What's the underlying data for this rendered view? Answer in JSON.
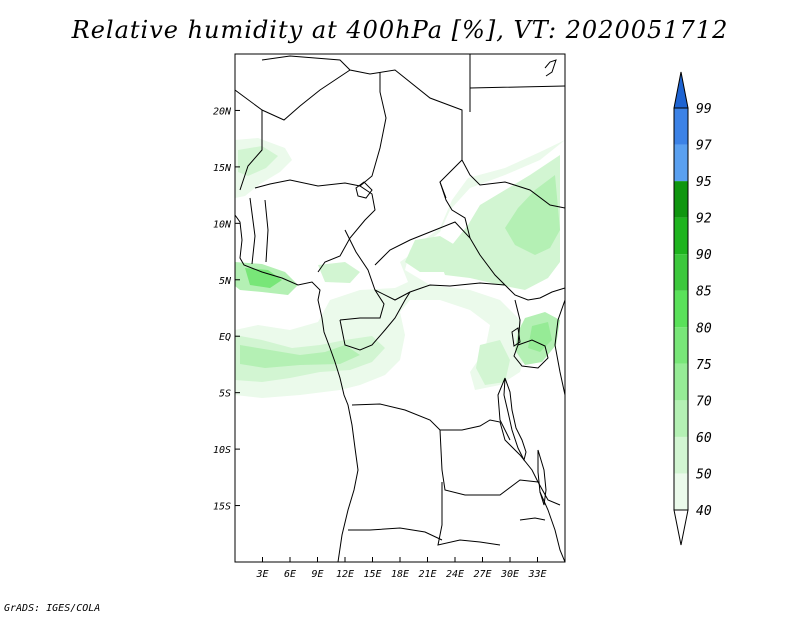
{
  "title": "Relative humidity at 400hPa [%], VT: 2020051712",
  "credit": "GrADS: IGES/COLA",
  "map": {
    "lon_range": [
      0,
      36
    ],
    "lat_range": [
      -20,
      25
    ],
    "x_ticks": [
      "3E",
      "6E",
      "9E",
      "12E",
      "15E",
      "18E",
      "21E",
      "24E",
      "27E",
      "30E",
      "33E"
    ],
    "x_tick_values": [
      3,
      6,
      9,
      12,
      15,
      18,
      21,
      24,
      27,
      30,
      33
    ],
    "y_ticks": [
      "20N",
      "15N",
      "10N",
      "5N",
      "EQ",
      "5S",
      "10S",
      "15S"
    ],
    "y_tick_values": [
      20,
      15,
      10,
      5,
      0,
      -5,
      -10,
      -15
    ]
  },
  "colorbar": {
    "levels": [
      "40",
      "50",
      "60",
      "70",
      "75",
      "80",
      "85",
      "90",
      "92",
      "95",
      "97",
      "99"
    ],
    "colors": [
      "#ebfaeb",
      "#d2f5d2",
      "#b4f0b4",
      "#96eb96",
      "#78e678",
      "#5ae15a",
      "#3cc83c",
      "#1eb41e",
      "#0f960f",
      "#5aa0f0",
      "#3c82e6",
      "#1e64d2"
    ],
    "below_color": "#ffffff"
  }
}
